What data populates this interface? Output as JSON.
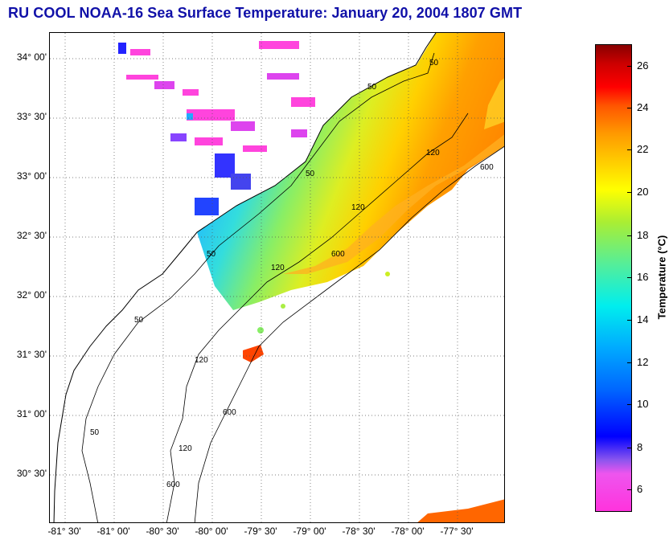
{
  "title": "RU COOL  NOAA-16  Sea Surface Temperature:  January 20, 2004 1807 GMT",
  "y_axis_labels": [
    "34° 00'",
    "33° 30'",
    "33° 00'",
    "32° 30'",
    "32° 00'",
    "31° 30'",
    "31° 00'",
    "30° 30'"
  ],
  "x_axis_labels": [
    "-81° 30'",
    "-81° 00'",
    "-80° 30'",
    "-80° 00'",
    "-79° 30'",
    "-79° 00'",
    "-78° 30'",
    "-78° 00'",
    "-77° 30'"
  ],
  "contour_labels": [
    "50",
    "50",
    "50",
    "120",
    "120",
    "120",
    "600",
    "600",
    "600",
    "50",
    "120",
    "50",
    "120",
    "600",
    "50"
  ],
  "colorbar": {
    "title": "Temperature (°C)",
    "tick_labels": [
      "26",
      "24",
      "22",
      "20",
      "18",
      "16",
      "14",
      "12",
      "10",
      "8",
      "6"
    ]
  },
  "colors": {
    "title": "#1010a8",
    "land": "#ffffff",
    "grid": "#555555",
    "contours": "#000000"
  }
}
